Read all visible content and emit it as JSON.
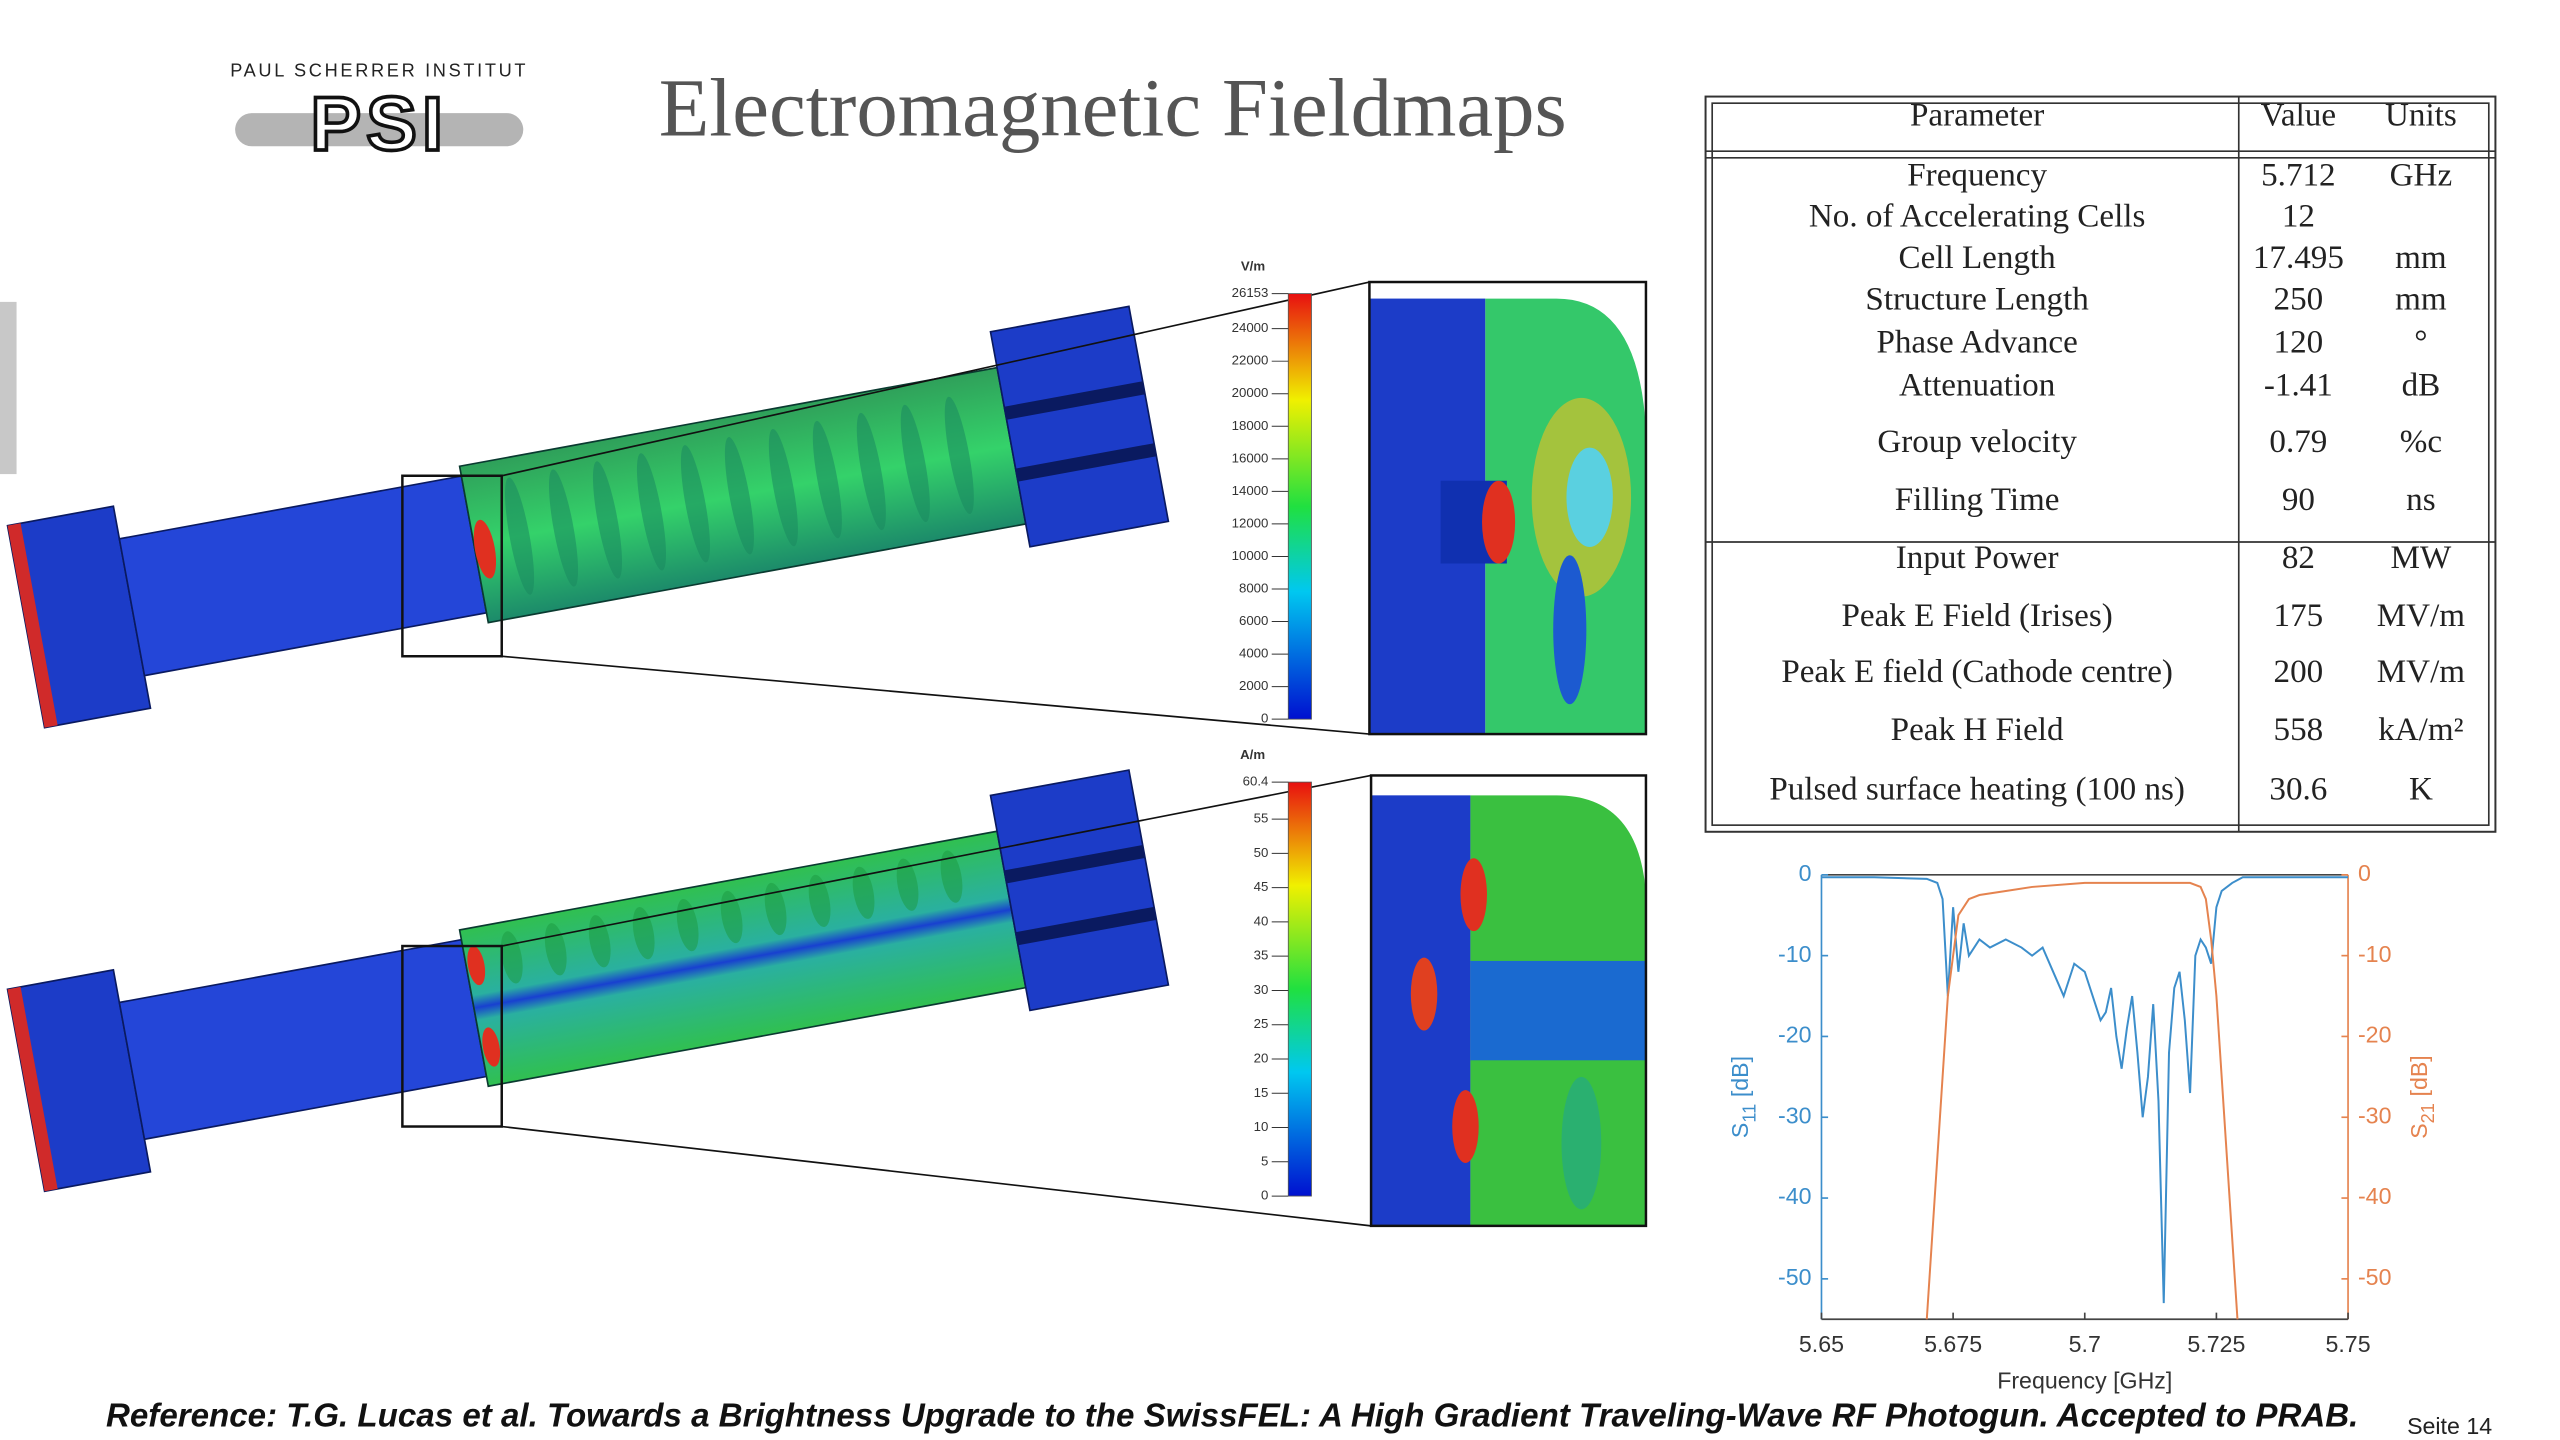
{
  "header": {
    "institute": "PAUL SCHERRER INSTITUT",
    "logo": "PSI",
    "title": "Electromagnetic Fieldmaps"
  },
  "fieldmaps": [
    {
      "unit": "V/m",
      "ticks": [
        26153,
        24000,
        22000,
        20000,
        18000,
        16000,
        14000,
        12000,
        10000,
        8000,
        6000,
        4000,
        2000,
        0
      ]
    },
    {
      "unit": "A/m",
      "ticks": [
        60.4,
        55,
        50,
        45,
        40,
        35,
        30,
        25,
        20,
        15,
        10,
        5,
        0
      ]
    }
  ],
  "table": {
    "header": [
      "Parameter",
      "Value",
      "Units"
    ],
    "sections": [
      [
        {
          "parameter": "Frequency",
          "value": "5.712",
          "units": "GHz"
        },
        {
          "parameter": "No. of Accelerating Cells",
          "value": "12"
        },
        {
          "parameter": "Cell Length",
          "value": "17.495",
          "units": "mm"
        },
        {
          "parameter": "Structure Length",
          "value": "250",
          "units": "mm"
        },
        {
          "parameter": "Phase Advance",
          "value": "120",
          "units": "°"
        },
        {
          "parameter": "Attenuation",
          "value": "-1.41",
          "units": "dB"
        },
        {
          "parameter": "Group velocity",
          "value": "0.79",
          "units": "%c"
        },
        {
          "parameter": "Filling Time",
          "value": "90",
          "units": "ns"
        }
      ],
      [
        {
          "parameter": "Input Power",
          "value": "82",
          "units": "MW"
        },
        {
          "parameter": "Peak E Field (Irises)",
          "value": "175",
          "units": "MV/m"
        },
        {
          "parameter": "Peak E field (Cathode centre)",
          "value": "200",
          "units": "MV/m"
        },
        {
          "parameter": "Peak H Field",
          "value": "558",
          "units": "kA/m²"
        },
        {
          "parameter": "Pulsed surface heating (100 ns)",
          "value": "30.6",
          "units": "K"
        }
      ]
    ]
  },
  "chart_data": {
    "type": "line",
    "xlabel": "Frequency [GHz]",
    "ylabel": {
      "symbol": "S",
      "sub": "11",
      "unit": "[dB]"
    },
    "y2label": {
      "symbol": "S",
      "sub": "21",
      "unit": "[dB]"
    },
    "xlim": [
      5.65,
      5.75
    ],
    "xticks": [
      5.65,
      5.675,
      5.7,
      5.725,
      5.75
    ],
    "ylim": [
      -55,
      0
    ],
    "yticks": [
      0,
      -10,
      -20,
      -30,
      -40,
      -50
    ],
    "y2lim": [
      -55,
      0
    ],
    "y2ticks": [
      0,
      -10,
      -20,
      -30,
      -40,
      -50
    ],
    "series": [
      {
        "color": "#3c8ecb",
        "x": [
          5.65,
          5.66,
          5.67,
          5.672,
          5.673,
          5.674,
          5.675,
          5.676,
          5.677,
          5.678,
          5.68,
          5.682,
          5.685,
          5.688,
          5.69,
          5.692,
          5.694,
          5.696,
          5.697,
          5.698,
          5.7,
          5.702,
          5.703,
          5.704,
          5.705,
          5.706,
          5.707,
          5.708,
          5.709,
          5.71,
          5.711,
          5.712,
          5.713,
          5.714,
          5.715,
          5.716,
          5.717,
          5.718,
          5.719,
          5.72,
          5.721,
          5.722,
          5.723,
          5.724,
          5.725,
          5.726,
          5.728,
          5.73,
          5.74,
          5.75
        ],
        "values": [
          -0.3,
          -0.3,
          -0.5,
          -1,
          -3,
          -15,
          -4,
          -12,
          -6,
          -10,
          -8,
          -9,
          -8,
          -9,
          -10,
          -9,
          -12,
          -15,
          -13,
          -11,
          -12,
          -16,
          -18,
          -17,
          -14,
          -20,
          -24,
          -19,
          -15,
          -22,
          -30,
          -25,
          -16,
          -28,
          -53,
          -22,
          -14,
          -12,
          -18,
          -27,
          -10,
          -8,
          -9,
          -11,
          -4,
          -2,
          -1,
          -0.3,
          -0.3,
          -0.3
        ]
      },
      {
        "color": "#e5834f",
        "axis": "y2",
        "x": [
          5.67,
          5.672,
          5.674,
          5.676,
          5.678,
          5.68,
          5.685,
          5.69,
          5.7,
          5.71,
          5.72,
          5.722,
          5.723,
          5.724,
          5.725,
          5.727,
          5.729
        ],
        "values": [
          -55,
          -35,
          -15,
          -5,
          -3,
          -2.5,
          -2,
          -1.5,
          -1,
          -1,
          -1,
          -1.5,
          -3,
          -8,
          -15,
          -35,
          -55
        ]
      }
    ]
  },
  "footer": {
    "reference": "Reference:  T.G. Lucas et al. Towards a Brightness Upgrade to the SwissFEL: A High Gradient Traveling-Wave RF Photogun. Accepted to PRAB.",
    "page": "Seite 14"
  }
}
